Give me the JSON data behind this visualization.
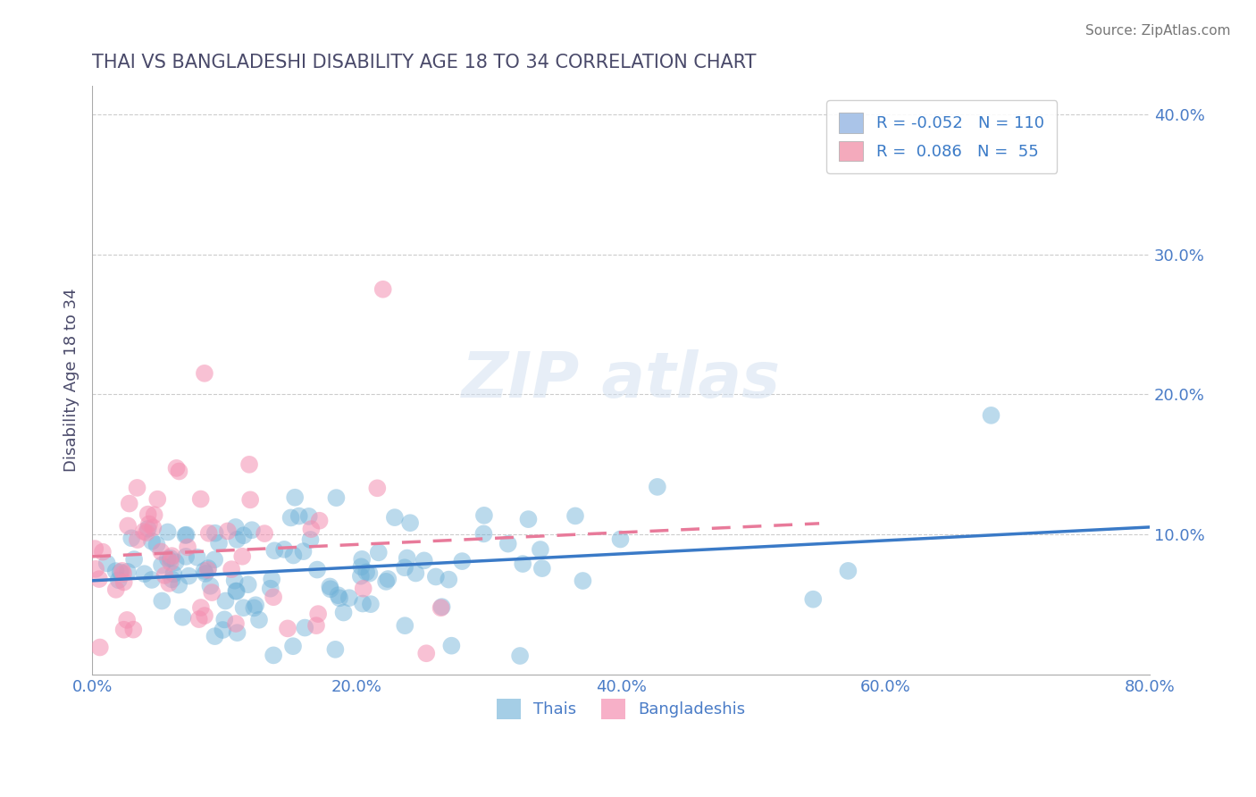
{
  "title": "THAI VS BANGLADESHI DISABILITY AGE 18 TO 34 CORRELATION CHART",
  "source": "Source: ZipAtlas.com",
  "xlabel_bottom": "",
  "ylabel": "Disability Age 18 to 34",
  "xlim": [
    0.0,
    0.8
  ],
  "ylim": [
    0.0,
    0.42
  ],
  "xticks": [
    0.0,
    0.2,
    0.4,
    0.6,
    0.8
  ],
  "xtick_labels": [
    "0.0%",
    "20.0%",
    "40.0%",
    "60.0%",
    "80.0%"
  ],
  "yticks_right": [
    0.0,
    0.1,
    0.2,
    0.3,
    0.4
  ],
  "ytick_labels_right": [
    "",
    "10.0%",
    "20.0%",
    "30.0%",
    "40.0%"
  ],
  "grid_color": "#cccccc",
  "background_color": "#ffffff",
  "watermark": "ZIPatlas",
  "legend_entries": [
    {
      "label": "R = -0.052   N = 110",
      "color": "#aac4e8"
    },
    {
      "label": "R =  0.086   N =  55",
      "color": "#f4aabc"
    }
  ],
  "bottom_legend": [
    "Thais",
    "Bangladeshis"
  ],
  "thai_color": "#6aaed6",
  "bangladeshi_color": "#f48fb1",
  "thai_R": -0.052,
  "thai_N": 110,
  "bangladeshi_R": 0.086,
  "bangladeshi_N": 55,
  "title_color": "#4a4a6a",
  "axis_label_color": "#4a7cc7",
  "tick_label_color": "#4a7cc7",
  "regression_line_thai_color": "#3a7ac7",
  "regression_line_bangladeshi_color": "#e87a9a"
}
